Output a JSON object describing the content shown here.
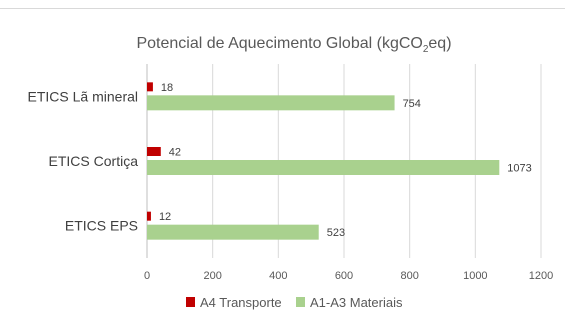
{
  "chart_data": {
    "type": "bar",
    "orientation": "horizontal",
    "title": "Potencial de Aquecimento Global (kgCO2eq)",
    "title_parts": {
      "main": "Potencial de Aquecimento Global (kgCO",
      "sub": "2",
      "tail": "eq)"
    },
    "categories": [
      "ETICS Lã mineral",
      "ETICS Cortiça",
      "ETICS EPS"
    ],
    "series": [
      {
        "name": "A4 Transporte",
        "values": [
          18,
          42,
          12
        ],
        "color": "#c00000"
      },
      {
        "name": "A1-A3 Materiais",
        "values": [
          754,
          1073,
          523
        ],
        "color": "#a9d18e"
      }
    ],
    "x_ticks": [
      0,
      200,
      400,
      600,
      800,
      1000,
      1200
    ],
    "xlim": [
      0,
      1200
    ],
    "grid": "vertical",
    "legend_position": "bottom"
  }
}
